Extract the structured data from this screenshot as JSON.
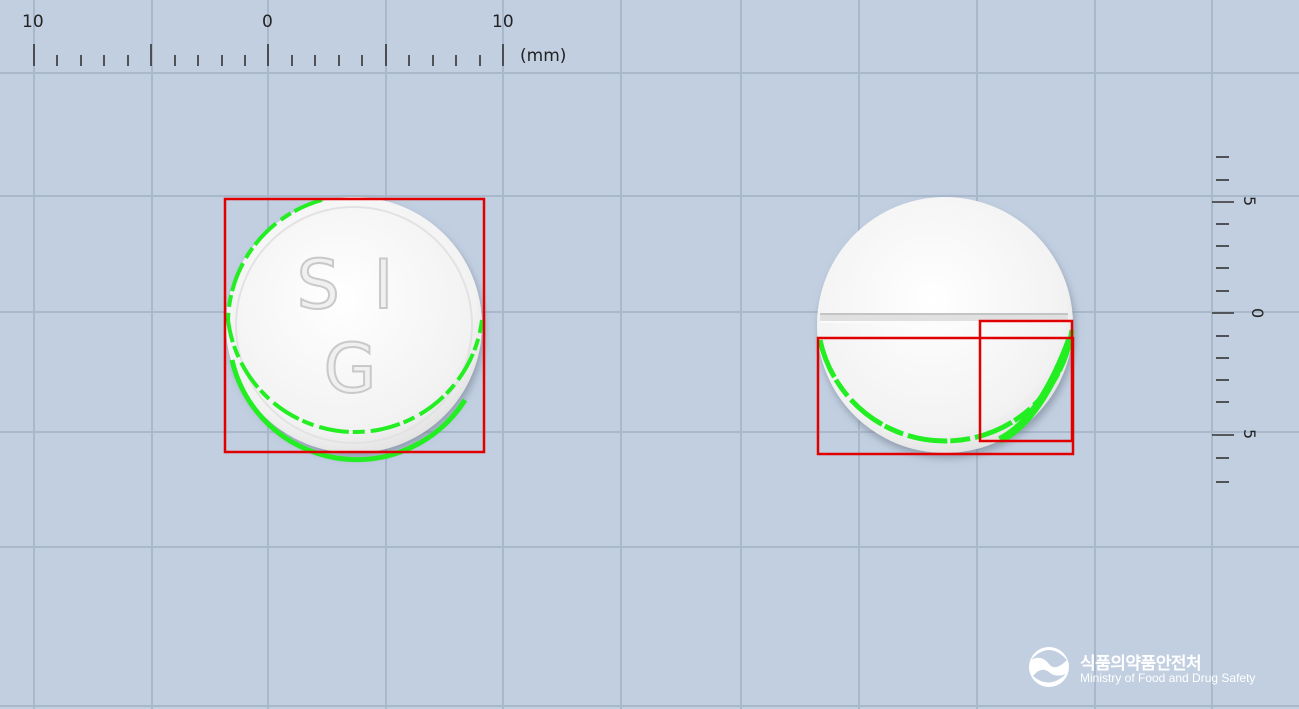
{
  "ruler_top": {
    "labels": [
      "10",
      "0",
      "10"
    ],
    "unit": "(mm)"
  },
  "ruler_right": {
    "labels": [
      "5",
      "0",
      "5"
    ]
  },
  "tablet_front": {
    "imprint_line1": "S I",
    "imprint_line2": "G",
    "color": "#f4f4f4"
  },
  "tablet_back": {
    "feature": "score-line",
    "color": "#f4f4f4"
  },
  "annotation_colors": {
    "box": "#e00000",
    "contour": "#22ee22"
  },
  "logo": {
    "korean": "식품의약품안전처",
    "english": "Ministry of Food and Drug Safety"
  }
}
